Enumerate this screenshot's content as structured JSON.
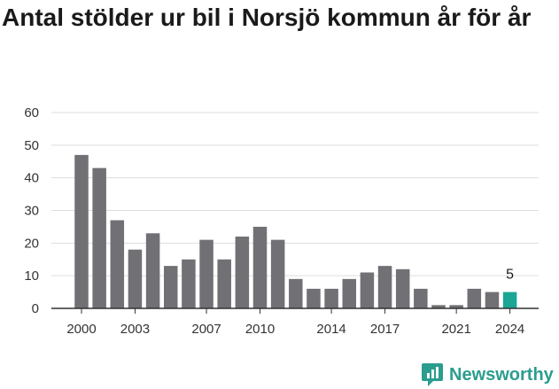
{
  "title": "Antal stölder ur bil i Norsjö kommun år för år",
  "brand": {
    "name": "Newsworthy",
    "icon": "newsworthy-logo-icon",
    "color": "#2a9d8f"
  },
  "colors": {
    "bar": "#717075",
    "highlight": "#1aa595",
    "grid": "#dddddd",
    "axis": "#333333"
  },
  "chart_data": {
    "type": "bar",
    "title": "Antal stölder ur bil i Norsjö kommun år för år",
    "xlabel": "",
    "ylabel": "",
    "ylim": [
      0,
      60
    ],
    "yticks": [
      0,
      10,
      20,
      30,
      40,
      50,
      60
    ],
    "grid": true,
    "categories": [
      "2000",
      "2001",
      "2002",
      "2003",
      "2004",
      "2005",
      "2006",
      "2007",
      "2008",
      "2009",
      "2010",
      "2011",
      "2012",
      "2013",
      "2014",
      "2015",
      "2016",
      "2017",
      "2018",
      "2019",
      "2020",
      "2021",
      "2022",
      "2023",
      "2024"
    ],
    "xtick_labels": [
      "2000",
      "2003",
      "2007",
      "2010",
      "2014",
      "2017",
      "2021",
      "2024"
    ],
    "values": [
      47,
      43,
      27,
      18,
      23,
      13,
      15,
      21,
      15,
      22,
      25,
      21,
      9,
      6,
      6,
      9,
      11,
      13,
      12,
      6,
      1,
      1,
      6,
      5,
      5
    ],
    "highlight": {
      "category": "2024",
      "label": "5"
    }
  }
}
